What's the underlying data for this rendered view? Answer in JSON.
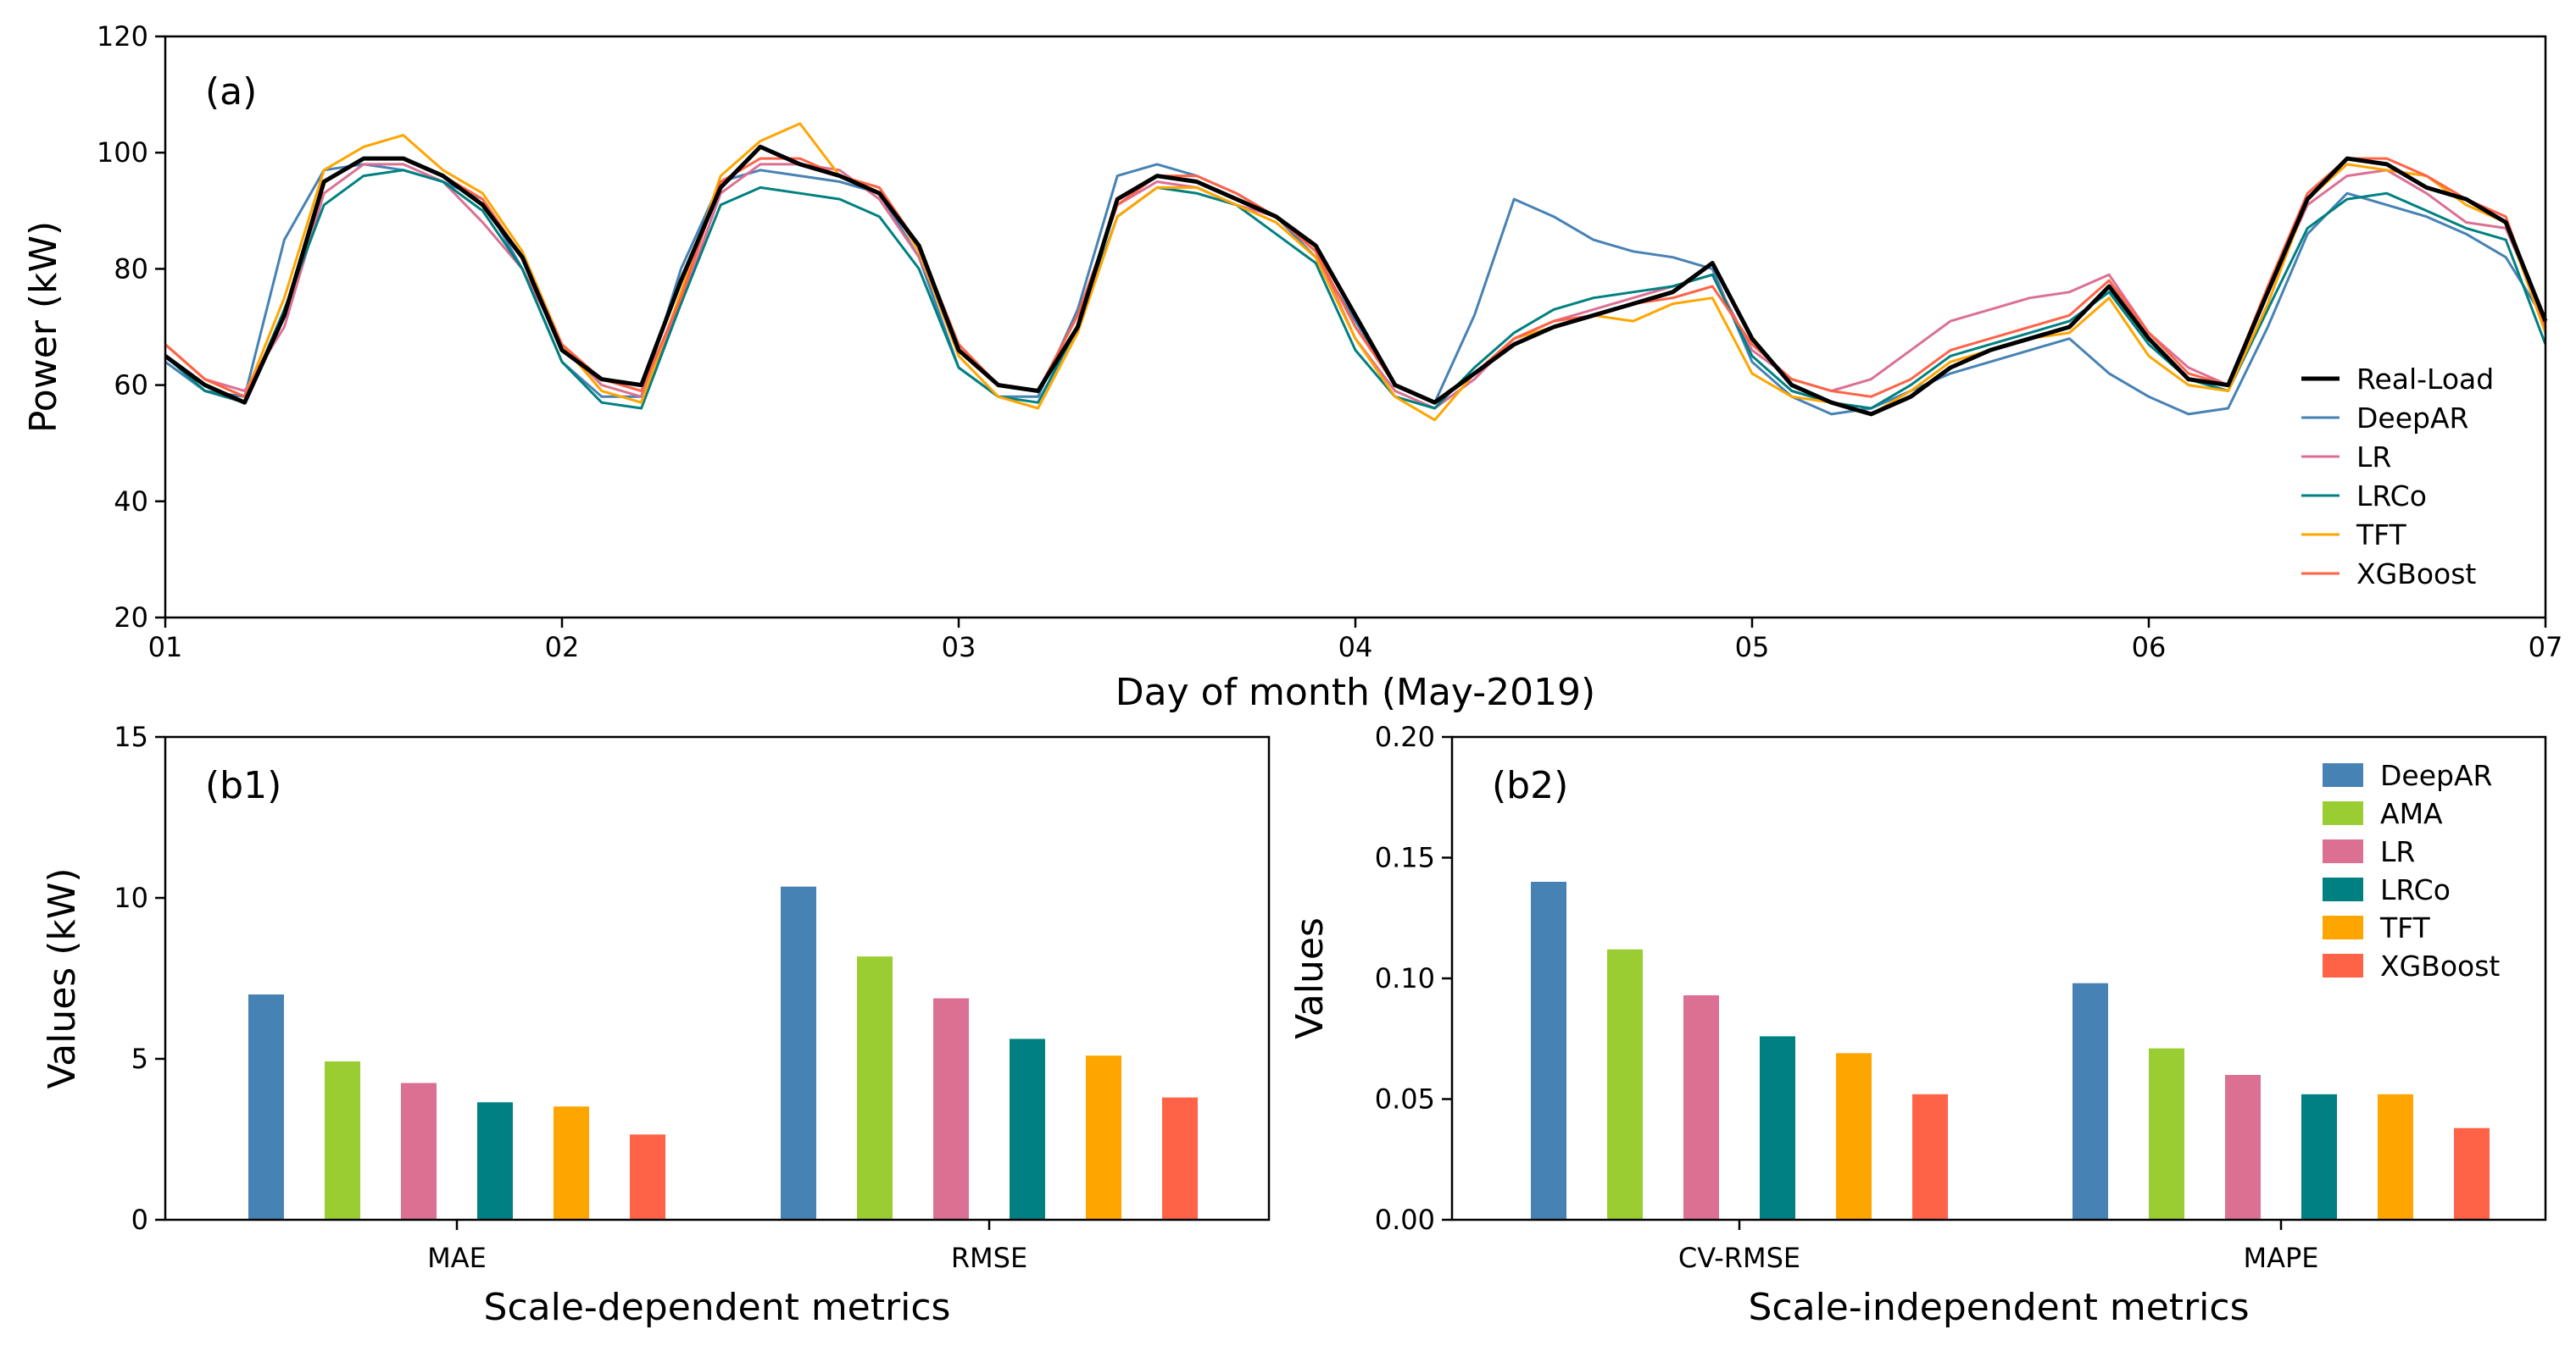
{
  "colors": {
    "Real-Load": "#000000",
    "DeepAR": "#4682b4",
    "AMA": "#9acd32",
    "LR": "#db7093",
    "LRCo": "#008080",
    "TFT": "#ffa500",
    "XGBoost": "#ff6347"
  },
  "chart_data": [
    {
      "id": "a",
      "type": "line",
      "panel_label": "(a)",
      "xlabel": "Day of month (May-2019)",
      "ylabel": "Power (kW)",
      "xlim": [
        1,
        7
      ],
      "ylim": [
        20,
        120
      ],
      "xticks": [
        1,
        2,
        3,
        4,
        5,
        6,
        7
      ],
      "xtick_labels": [
        "01",
        "02",
        "03",
        "04",
        "05",
        "06",
        "07"
      ],
      "yticks": [
        20,
        40,
        60,
        80,
        100,
        120
      ],
      "ytick_labels": [
        "20",
        "40",
        "60",
        "80",
        "100",
        "120"
      ],
      "grid": false,
      "legend_position": "lower-right",
      "x": [
        1.0,
        1.1,
        1.2,
        1.3,
        1.4,
        1.5,
        1.6,
        1.7,
        1.8,
        1.9,
        2.0,
        2.1,
        2.2,
        2.3,
        2.4,
        2.5,
        2.6,
        2.7,
        2.8,
        2.9,
        3.0,
        3.1,
        3.2,
        3.3,
        3.4,
        3.5,
        3.6,
        3.7,
        3.8,
        3.9,
        4.0,
        4.1,
        4.2,
        4.3,
        4.4,
        4.5,
        4.6,
        4.7,
        4.8,
        4.9,
        5.0,
        5.1,
        5.2,
        5.3,
        5.4,
        5.5,
        5.6,
        5.7,
        5.8,
        5.9,
        6.0,
        6.1,
        6.2,
        6.3,
        6.4,
        6.5,
        6.6,
        6.7,
        6.8,
        6.9,
        7.0
      ],
      "series": [
        {
          "name": "Real-Load",
          "values": [
            65,
            60,
            57,
            72,
            95,
            99,
            99,
            96,
            91,
            82,
            66,
            61,
            60,
            78,
            94,
            101,
            98,
            96,
            93,
            84,
            66,
            60,
            59,
            70,
            92,
            96,
            95,
            92,
            89,
            84,
            72,
            60,
            57,
            62,
            67,
            70,
            72,
            74,
            76,
            81,
            68,
            60,
            57,
            55,
            58,
            63,
            66,
            68,
            70,
            77,
            68,
            61,
            60,
            76,
            92,
            99,
            98,
            94,
            92,
            88,
            71
          ]
        },
        {
          "name": "DeepAR",
          "values": [
            64,
            59,
            58,
            85,
            97,
            98,
            97,
            95,
            92,
            80,
            64,
            58,
            58,
            80,
            95,
            97,
            96,
            95,
            93,
            82,
            63,
            58,
            58,
            73,
            96,
            98,
            96,
            93,
            89,
            82,
            71,
            60,
            57,
            72,
            92,
            89,
            85,
            83,
            82,
            80,
            64,
            58,
            55,
            56,
            59,
            62,
            64,
            66,
            68,
            62,
            58,
            55,
            56,
            70,
            86,
            93,
            91,
            89,
            86,
            82,
            71
          ]
        },
        {
          "name": "LR",
          "values": [
            67,
            61,
            59,
            70,
            93,
            98,
            98,
            95,
            88,
            80,
            67,
            60,
            58,
            74,
            93,
            98,
            98,
            97,
            92,
            82,
            67,
            60,
            59,
            72,
            91,
            95,
            94,
            91,
            89,
            83,
            68,
            59,
            56,
            61,
            68,
            71,
            73,
            75,
            77,
            79,
            66,
            61,
            59,
            61,
            66,
            71,
            73,
            75,
            76,
            79,
            69,
            63,
            60,
            76,
            91,
            96,
            97,
            93,
            88,
            87,
            71
          ]
        },
        {
          "name": "LRCo",
          "values": [
            65,
            59,
            57,
            73,
            91,
            96,
            97,
            95,
            90,
            80,
            64,
            57,
            56,
            74,
            91,
            94,
            93,
            92,
            89,
            80,
            63,
            58,
            57,
            70,
            89,
            94,
            93,
            91,
            86,
            81,
            66,
            58,
            56,
            63,
            69,
            73,
            75,
            76,
            77,
            79,
            65,
            59,
            57,
            56,
            60,
            65,
            67,
            69,
            71,
            76,
            67,
            61,
            59,
            73,
            87,
            92,
            93,
            90,
            87,
            85,
            67
          ]
        },
        {
          "name": "TFT",
          "values": [
            67,
            61,
            58,
            75,
            97,
            101,
            103,
            97,
            93,
            83,
            67,
            59,
            57,
            76,
            96,
            102,
            105,
            96,
            94,
            83,
            65,
            58,
            56,
            69,
            89,
            94,
            94,
            91,
            88,
            82,
            68,
            58,
            54,
            62,
            68,
            70,
            72,
            71,
            74,
            75,
            62,
            58,
            57,
            55,
            59,
            64,
            66,
            68,
            69,
            75,
            65,
            60,
            59,
            74,
            92,
            98,
            97,
            96,
            91,
            88,
            69
          ]
        },
        {
          "name": "XGBoost",
          "values": [
            67,
            61,
            58,
            72,
            95,
            99,
            99,
            96,
            92,
            82,
            67,
            61,
            59,
            75,
            95,
            99,
            99,
            96,
            94,
            84,
            67,
            60,
            59,
            72,
            91,
            96,
            96,
            93,
            89,
            83,
            70,
            60,
            57,
            62,
            68,
            71,
            72,
            74,
            75,
            77,
            67,
            61,
            59,
            58,
            61,
            66,
            68,
            70,
            72,
            78,
            69,
            62,
            60,
            77,
            93,
            99,
            99,
            96,
            92,
            89,
            70
          ]
        }
      ]
    },
    {
      "id": "b1",
      "type": "bar",
      "panel_label": "(b1)",
      "xlabel": "Scale-dependent metrics",
      "ylabel": "Values (kW)",
      "categories": [
        "MAE",
        "RMSE"
      ],
      "ylim": [
        0,
        15
      ],
      "yticks": [
        0,
        5,
        10,
        15
      ],
      "ytick_labels": [
        "0",
        "5",
        "10",
        "15"
      ],
      "grid": false,
      "series": [
        {
          "name": "DeepAR",
          "values": [
            7.0,
            10.35
          ]
        },
        {
          "name": "AMA",
          "values": [
            4.92,
            8.18
          ]
        },
        {
          "name": "LR",
          "values": [
            4.25,
            6.88
          ]
        },
        {
          "name": "LRCo",
          "values": [
            3.65,
            5.62
          ]
        },
        {
          "name": "TFT",
          "values": [
            3.52,
            5.1
          ]
        },
        {
          "name": "XGBoost",
          "values": [
            2.65,
            3.8
          ]
        }
      ]
    },
    {
      "id": "b2",
      "type": "bar",
      "panel_label": "(b2)",
      "xlabel": "Scale-independent metrics",
      "ylabel": "Values",
      "categories": [
        "CV-RMSE",
        "MAPE"
      ],
      "ylim": [
        0,
        0.2
      ],
      "yticks": [
        0,
        0.05,
        0.1,
        0.15,
        0.2
      ],
      "ytick_labels": [
        "0.00",
        "0.05",
        "0.10",
        "0.15",
        "0.20"
      ],
      "grid": false,
      "legend_position": "top-right",
      "series": [
        {
          "name": "DeepAR",
          "values": [
            0.14,
            0.098
          ]
        },
        {
          "name": "AMA",
          "values": [
            0.112,
            0.071
          ]
        },
        {
          "name": "LR",
          "values": [
            0.093,
            0.06
          ]
        },
        {
          "name": "LRCo",
          "values": [
            0.076,
            0.052
          ]
        },
        {
          "name": "TFT",
          "values": [
            0.069,
            0.052
          ]
        },
        {
          "name": "XGBoost",
          "values": [
            0.052,
            0.038
          ]
        }
      ]
    }
  ]
}
